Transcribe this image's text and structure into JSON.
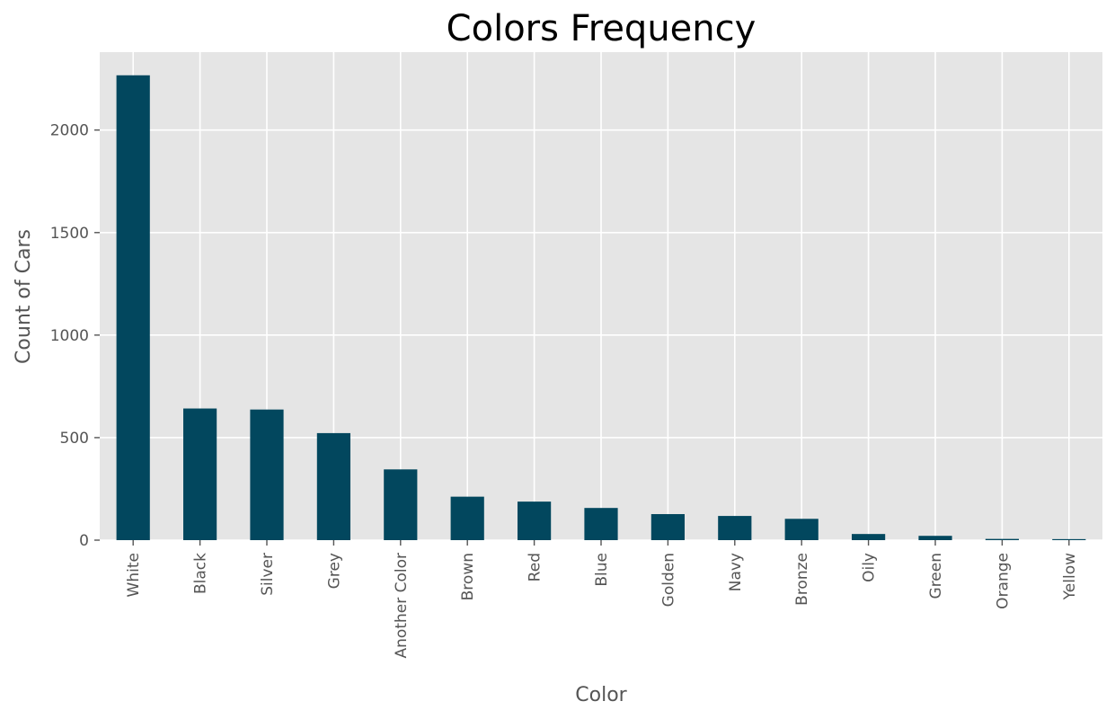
{
  "chart_data": {
    "type": "bar",
    "title": "Colors Frequency",
    "xlabel": "Color",
    "ylabel": "Count of Cars",
    "categories": [
      "White",
      "Black",
      "Silver",
      "Grey",
      "Another Color",
      "Brown",
      "Red",
      "Blue",
      "Golden",
      "Navy",
      "Bronze",
      "Oily",
      "Green",
      "Orange",
      "Yellow"
    ],
    "values": [
      2267,
      642,
      637,
      522,
      345,
      212,
      188,
      157,
      127,
      118,
      104,
      30,
      21,
      6,
      5
    ],
    "ylim": [
      0,
      2380
    ],
    "yticks": [
      0,
      500,
      1000,
      1500,
      2000
    ],
    "grid": true,
    "bar_color": "#02475e",
    "background_color": "#e5e5e5",
    "grid_color": "#ffffff"
  }
}
